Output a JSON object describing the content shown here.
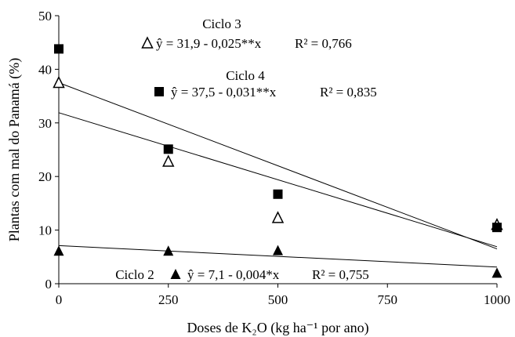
{
  "chart_data": {
    "type": "scatter",
    "xlabel": "Doses de K₂O (kg ha⁻¹ por ano)",
    "ylabel": "Plantas com mal do Panamá (%)",
    "xlim": [
      0,
      1000
    ],
    "ylim": [
      0,
      50
    ],
    "x_ticks": [
      "0",
      "250",
      "500",
      "750",
      "1000"
    ],
    "y_ticks": [
      "0",
      "10",
      "20",
      "30",
      "40",
      "50"
    ],
    "grid": false,
    "series": [
      {
        "name": "Ciclo 3",
        "marker": "open-triangle",
        "x": [
          0,
          250,
          500,
          1000
        ],
        "y": [
          37.5,
          22.8,
          12.3,
          11.0
        ],
        "fit": {
          "intercept": 31.9,
          "slope": -0.025
        },
        "equation": "ŷ = 31,9 - 0,025**x",
        "r2_label": "R² = 0,766"
      },
      {
        "name": "Ciclo 4",
        "marker": "filled-square",
        "x": [
          0,
          250,
          500,
          1000
        ],
        "y": [
          43.8,
          25.1,
          16.7,
          10.5
        ],
        "fit": {
          "intercept": 37.5,
          "slope": -0.031
        },
        "equation": "ŷ = 37,5 - 0,031**x",
        "r2_label": "R² = 0,835"
      },
      {
        "name": "Ciclo 2",
        "marker": "filled-triangle",
        "x": [
          0,
          250,
          500,
          1000
        ],
        "y": [
          6.1,
          6.1,
          6.2,
          2.0
        ],
        "fit": {
          "intercept": 7.1,
          "slope": -0.004
        },
        "equation": "ŷ = 7,1 - 0,004*x",
        "r2_label": "R² = 0,755"
      }
    ]
  }
}
